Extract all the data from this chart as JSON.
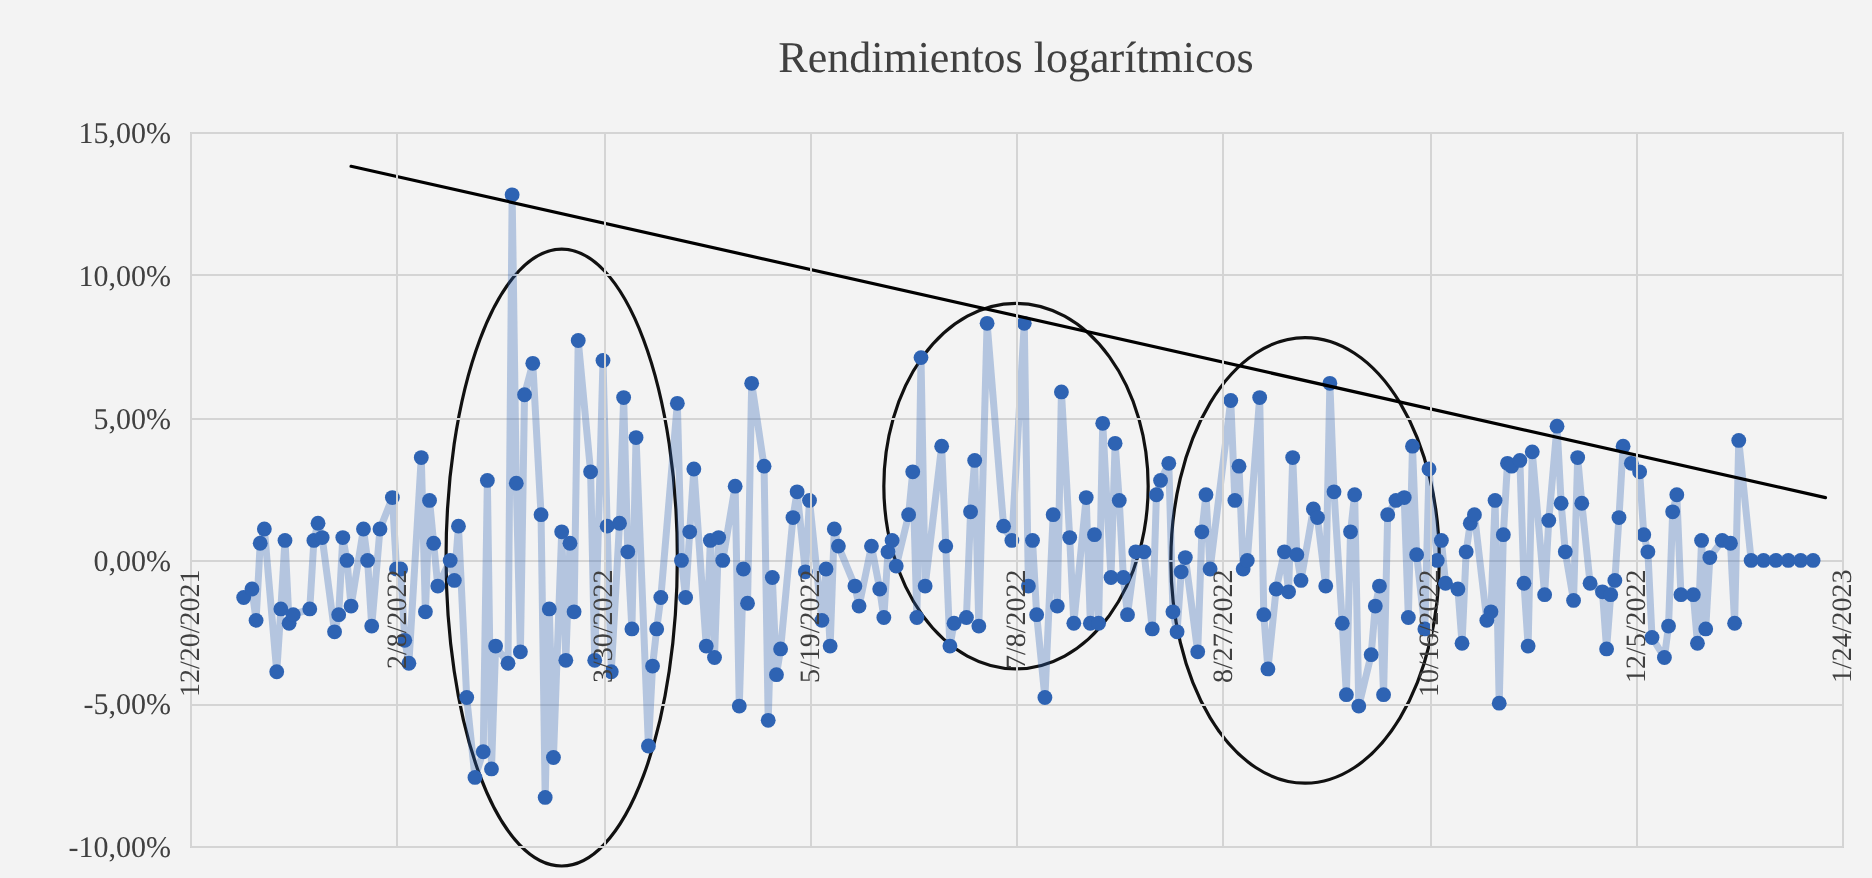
{
  "chart_data": {
    "type": "line",
    "title": "Rendimientos logarítmicos",
    "x": [
      "2022-01-02",
      "2022-01-04",
      "2022-01-05",
      "2022-01-06",
      "2022-01-07",
      "2022-01-10",
      "2022-01-11",
      "2022-01-12",
      "2022-01-13",
      "2022-01-14",
      "2022-01-18",
      "2022-01-19",
      "2022-01-20",
      "2022-01-21",
      "2022-01-24",
      "2022-01-25",
      "2022-01-26",
      "2022-01-27",
      "2022-01-28",
      "2022-01-31",
      "2022-02-01",
      "2022-02-02",
      "2022-02-04",
      "2022-02-07",
      "2022-02-08",
      "2022-02-09",
      "2022-02-10",
      "2022-02-11",
      "2022-02-14",
      "2022-02-15",
      "2022-02-16",
      "2022-02-17",
      "2022-02-18",
      "2022-02-21",
      "2022-02-22",
      "2022-02-23",
      "2022-02-25",
      "2022-02-27",
      "2022-03-01",
      "2022-03-02",
      "2022-03-03",
      "2022-03-04",
      "2022-03-07",
      "2022-03-08",
      "2022-03-09",
      "2022-03-10",
      "2022-03-11",
      "2022-03-13",
      "2022-03-15",
      "2022-03-16",
      "2022-03-17",
      "2022-03-18",
      "2022-03-20",
      "2022-03-21",
      "2022-03-22",
      "2022-03-23",
      "2022-03-24",
      "2022-03-27",
      "2022-03-28",
      "2022-03-30",
      "2022-03-31",
      "2022-04-01",
      "2022-04-03",
      "2022-04-04",
      "2022-04-05",
      "2022-04-06",
      "2022-04-07",
      "2022-04-10",
      "2022-04-11",
      "2022-04-12",
      "2022-04-13",
      "2022-04-17",
      "2022-04-18",
      "2022-04-19",
      "2022-04-20",
      "2022-04-21",
      "2022-04-24",
      "2022-04-25",
      "2022-04-26",
      "2022-04-27",
      "2022-04-28",
      "2022-05-01",
      "2022-05-02",
      "2022-05-03",
      "2022-05-04",
      "2022-05-05",
      "2022-05-08",
      "2022-05-09",
      "2022-05-10",
      "2022-05-11",
      "2022-05-12",
      "2022-05-15",
      "2022-05-16",
      "2022-05-18",
      "2022-05-19",
      "2022-05-22",
      "2022-05-23",
      "2022-05-24",
      "2022-05-25",
      "2022-05-26",
      "2022-05-30",
      "2022-05-31",
      "2022-06-03",
      "2022-06-05",
      "2022-06-06",
      "2022-06-07",
      "2022-06-08",
      "2022-06-09",
      "2022-06-12",
      "2022-06-13",
      "2022-06-14",
      "2022-06-15",
      "2022-06-16",
      "2022-06-20",
      "2022-06-21",
      "2022-06-22",
      "2022-06-23",
      "2022-06-26",
      "2022-06-27",
      "2022-06-28",
      "2022-06-29",
      "2022-07-01",
      "2022-07-05",
      "2022-07-07",
      "2022-07-10",
      "2022-07-11",
      "2022-07-12",
      "2022-07-13",
      "2022-07-15",
      "2022-07-17",
      "2022-07-18",
      "2022-07-19",
      "2022-07-21",
      "2022-07-22",
      "2022-07-25",
      "2022-07-26",
      "2022-07-27",
      "2022-07-28",
      "2022-07-29",
      "2022-07-31",
      "2022-08-01",
      "2022-08-02",
      "2022-08-03",
      "2022-08-04",
      "2022-08-06",
      "2022-08-08",
      "2022-08-10",
      "2022-08-11",
      "2022-08-12",
      "2022-08-14",
      "2022-08-15",
      "2022-08-16",
      "2022-08-17",
      "2022-08-18",
      "2022-08-21",
      "2022-08-22",
      "2022-08-23",
      "2022-08-24",
      "2022-08-29",
      "2022-08-30",
      "2022-08-31",
      "2022-09-01",
      "2022-09-02",
      "2022-09-05",
      "2022-09-06",
      "2022-09-07",
      "2022-09-09",
      "2022-09-11",
      "2022-09-12",
      "2022-09-13",
      "2022-09-14",
      "2022-09-15",
      "2022-09-18",
      "2022-09-19",
      "2022-09-21",
      "2022-09-22",
      "2022-09-23",
      "2022-09-25",
      "2022-09-26",
      "2022-09-27",
      "2022-09-28",
      "2022-09-29",
      "2022-10-02",
      "2022-10-03",
      "2022-10-04",
      "2022-10-05",
      "2022-10-06",
      "2022-10-08",
      "2022-10-10",
      "2022-10-11",
      "2022-10-12",
      "2022-10-13",
      "2022-10-15",
      "2022-10-16",
      "2022-10-18",
      "2022-10-19",
      "2022-10-20",
      "2022-10-23",
      "2022-10-24",
      "2022-10-25",
      "2022-10-26",
      "2022-10-27",
      "2022-10-30",
      "2022-10-31",
      "2022-11-01",
      "2022-11-02",
      "2022-11-03",
      "2022-11-04",
      "2022-11-05",
      "2022-11-07",
      "2022-11-08",
      "2022-11-09",
      "2022-11-10",
      "2022-11-13",
      "2022-11-14",
      "2022-11-16",
      "2022-11-17",
      "2022-11-18",
      "2022-11-20",
      "2022-11-21",
      "2022-11-22",
      "2022-11-24",
      "2022-11-27",
      "2022-11-28",
      "2022-11-29",
      "2022-11-30",
      "2022-12-01",
      "2022-12-02",
      "2022-12-04",
      "2022-12-06",
      "2022-12-07",
      "2022-12-08",
      "2022-12-09",
      "2022-12-12",
      "2022-12-13",
      "2022-12-14",
      "2022-12-15",
      "2022-12-16",
      "2022-12-19",
      "2022-12-20",
      "2022-12-21",
      "2022-12-22",
      "2022-12-23",
      "2022-12-26",
      "2022-12-28",
      "2022-12-29",
      "2022-12-30",
      "2023-01-02",
      "2023-01-05",
      "2023-01-08",
      "2023-01-11",
      "2023-01-14",
      "2023-01-17"
    ],
    "series": [
      {
        "color": "#2e63b3",
        "values": [
          -1.3,
          -1.0,
          -2.1,
          0.6,
          1.1,
          -3.9,
          -1.7,
          0.7,
          -2.2,
          -1.9,
          -1.7,
          0.7,
          1.3,
          0.8,
          -2.5,
          -1.9,
          0.8,
          0.0,
          -1.6,
          1.1,
          0.0,
          -2.3,
          1.1,
          2.2,
          -0.3,
          -0.3,
          -2.8,
          -3.6,
          3.6,
          -1.8,
          2.1,
          0.6,
          -0.9,
          0.0,
          -0.7,
          1.2,
          -4.8,
          -7.6,
          -6.7,
          2.8,
          -7.3,
          -3.0,
          -3.6,
          12.8,
          2.7,
          -3.2,
          5.8,
          6.9,
          1.6,
          -8.3,
          -1.7,
          -6.9,
          1.0,
          -3.5,
          0.6,
          -1.8,
          7.7,
          3.1,
          -3.5,
          7.0,
          1.2,
          -3.9,
          1.3,
          5.7,
          0.3,
          -2.4,
          4.3,
          -6.5,
          -3.7,
          -2.4,
          -1.3,
          5.5,
          0.0,
          -1.3,
          1.0,
          3.2,
          -3.0,
          0.7,
          -3.4,
          0.8,
          0.0,
          2.6,
          -5.1,
          -0.3,
          -1.5,
          6.2,
          3.3,
          -5.6,
          -0.6,
          -4.0,
          -3.1,
          1.5,
          2.4,
          -0.4,
          2.1,
          -2.1,
          -0.3,
          -3.0,
          1.1,
          0.5,
          -0.9,
          -1.6,
          0.5,
          -1.0,
          -2.0,
          0.3,
          0.7,
          -0.2,
          1.6,
          3.1,
          -2.0,
          7.1,
          -0.9,
          4.0,
          0.5,
          -3.0,
          -2.2,
          -2.0,
          1.7,
          3.5,
          -2.3,
          8.3,
          1.2,
          0.7,
          8.3,
          -0.9,
          0.7,
          -1.9,
          -4.8,
          1.6,
          -1.6,
          5.9,
          0.8,
          -2.2,
          2.2,
          -2.2,
          0.9,
          -2.2,
          4.8,
          -0.6,
          4.1,
          2.1,
          -0.6,
          -1.9,
          0.3,
          0.3,
          -2.4,
          2.3,
          2.8,
          3.4,
          -1.8,
          -2.5,
          -0.4,
          0.1,
          -3.2,
          1.0,
          2.3,
          -0.3,
          5.6,
          2.1,
          3.3,
          -0.3,
          0.0,
          5.7,
          -1.9,
          -3.8,
          -1.0,
          0.3,
          -1.1,
          3.6,
          0.2,
          -0.7,
          1.8,
          1.5,
          -0.9,
          6.2,
          2.4,
          -2.2,
          -4.7,
          1.0,
          2.3,
          -5.1,
          -3.3,
          -1.6,
          -0.9,
          -4.7,
          1.6,
          2.1,
          2.2,
          -2.0,
          4.0,
          0.2,
          -2.4,
          3.2,
          0.0,
          0.7,
          -0.8,
          -1.0,
          -2.9,
          0.3,
          1.3,
          1.6,
          -2.1,
          -1.8,
          2.1,
          -5.0,
          0.9,
          3.4,
          3.3,
          3.5,
          -0.8,
          -3.0,
          3.8,
          -1.2,
          1.4,
          4.7,
          2.0,
          0.3,
          -1.4,
          3.6,
          2.0,
          -0.8,
          -1.1,
          -3.1,
          -1.2,
          -0.7,
          1.5,
          4.0,
          3.4,
          3.1,
          0.9,
          0.3,
          -2.7,
          -3.4,
          -2.3,
          1.7,
          2.3,
          -1.2,
          -1.2,
          -2.9,
          0.7,
          -2.4,
          0.1,
          0.7,
          0.6,
          -2.2,
          4.2,
          0.0,
          0.0,
          0.0,
          0.0,
          0.0,
          0.0
        ]
      },
      {
        "color": "#000000",
        "marker": "none",
        "x": [
          "2022-01-28",
          "2023-01-20"
        ],
        "values": [
          13.8,
          2.2
        ]
      }
    ],
    "xlim": [
      "2021-12-20",
      "2023-01-24"
    ],
    "xticks": [
      {
        "value": "2021-12-20",
        "label": "12/20/2021"
      },
      {
        "value": "2022-02-08",
        "label": "2/8/2022"
      },
      {
        "value": "2022-03-30",
        "label": "3/30/2022"
      },
      {
        "value": "2022-05-19",
        "label": "5/19/2022"
      },
      {
        "value": "2022-07-08",
        "label": "7/8/2022"
      },
      {
        "value": "2022-08-27",
        "label": "8/27/2022"
      },
      {
        "value": "2022-10-16",
        "label": "10/16/2022"
      },
      {
        "value": "2022-12-05",
        "label": "12/5/2022"
      },
      {
        "value": "2023-01-24",
        "label": "1/24/2023"
      }
    ],
    "ylim": [
      -10,
      15
    ],
    "yticks": [
      {
        "value": -10,
        "label": "-10,00%"
      },
      {
        "value": -5,
        "label": "-5,00%"
      },
      {
        "value": 0,
        "label": "0,00%"
      },
      {
        "value": 5,
        "label": "5,00%"
      },
      {
        "value": 10,
        "label": "10,00%"
      },
      {
        "value": 15,
        "label": "15,00%"
      }
    ],
    "grid": true,
    "marker": "circle",
    "line_style": "solid"
  }
}
